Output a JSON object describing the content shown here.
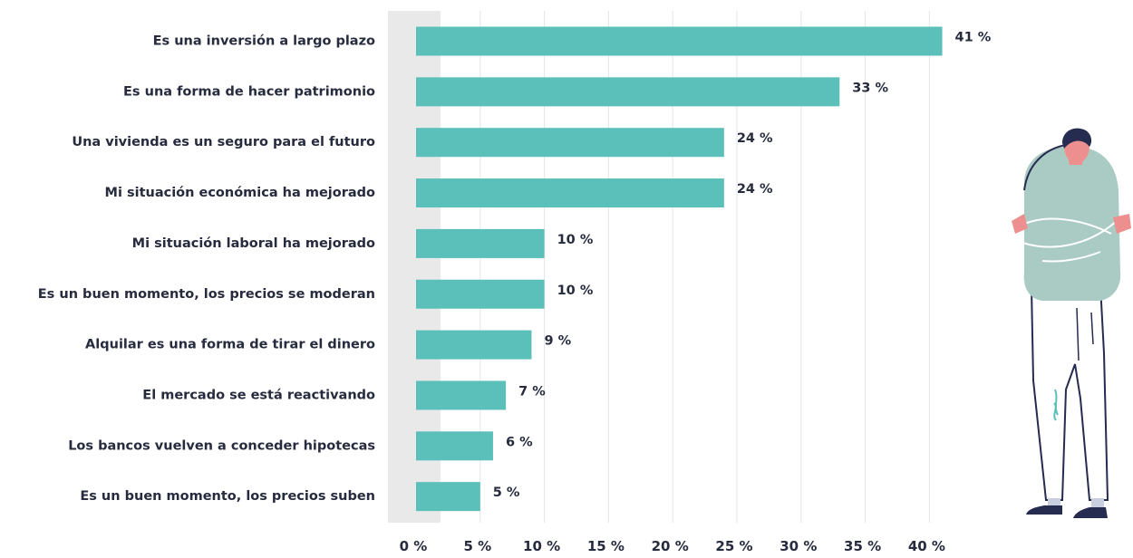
{
  "chart_data": {
    "type": "bar",
    "orientation": "horizontal",
    "title": "",
    "xlabel": "",
    "ylabel": "",
    "categories": [
      "Es una inversión a largo plazo",
      "Es una forma de hacer patrimonio",
      "Una vivienda es un seguro para el futuro",
      "Mi situación económica ha mejorado",
      "Mi situación laboral ha mejorado",
      "Es un buen momento, los precios se moderan",
      "Alquilar es una forma de tirar el dinero",
      "El mercado se está reactivando",
      "Los bancos vuelven a conceder hipotecas",
      "Es un buen momento, los precios suben"
    ],
    "values": [
      41,
      33,
      24,
      24,
      10,
      10,
      9,
      7,
      6,
      5
    ],
    "value_labels": [
      "41 %",
      "33 %",
      "24 %",
      "24 %",
      "10 %",
      "10 %",
      "9 %",
      "7 %",
      "6 %",
      "5 %"
    ],
    "xlim": [
      0,
      40
    ],
    "x_ticks": [
      0,
      5,
      10,
      15,
      20,
      25,
      30,
      35,
      40
    ],
    "x_tick_labels": [
      "0 %",
      "5 %",
      "10 %",
      "15 %",
      "20 %",
      "25 %",
      "30 %",
      "35 %",
      "40 %"
    ],
    "grid": "vertical",
    "legend": "none",
    "colors": {
      "bar": "#5bbfba",
      "text": "#262b3e",
      "grid": "#e3e5e8",
      "zero_band": "#e9e9ea"
    }
  },
  "illustration": {
    "icon": "person-arms-crossed-icon",
    "colors": {
      "sweater": "#a9cbc4",
      "skin": "#ee8f8f",
      "hair": "#262b50",
      "pants": "#ffffff",
      "outline": "#262b50",
      "shoes": "#262b50"
    }
  }
}
